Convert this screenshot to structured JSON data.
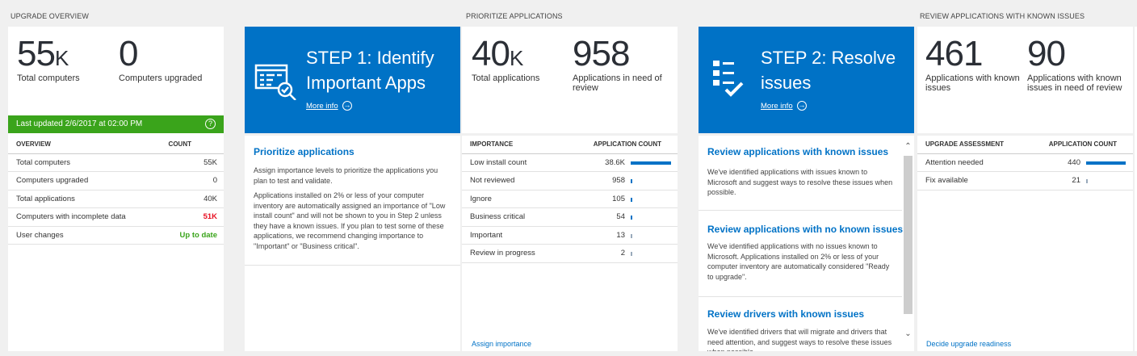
{
  "colors": {
    "accent": "#0072c6",
    "success": "#3aa41b",
    "danger": "#e81123"
  },
  "overview": {
    "section": "UPGRADE OVERVIEW",
    "kpi1": {
      "value": "55",
      "unit": "K",
      "label": "Total computers"
    },
    "kpi2": {
      "value": "0",
      "label": "Computers upgraded"
    },
    "last_updated": "Last updated 2/6/2017 at 02:00 PM",
    "help": "?",
    "table": {
      "headers": [
        "OVERVIEW",
        "COUNT"
      ],
      "rows": [
        [
          "Total computers",
          "55K"
        ],
        [
          "Computers upgraded",
          "0"
        ],
        [
          "Total applications",
          "40K"
        ],
        [
          "Computers with incomplete data",
          "51K"
        ],
        [
          "User changes",
          "Up to date"
        ]
      ]
    }
  },
  "step1": {
    "title": "STEP 1: Identify Important Apps",
    "more": "More info",
    "heading": "Prioritize applications",
    "p1": "Assign importance levels to prioritize the applications you plan to test and validate.",
    "p2": "Applications installed on 2% or less of your computer inventory are automatically assigned an importance of \"Low install count\" and will not be shown to you in Step 2 unless they have a known issues. If you plan to test some of these applications, we recommend changing importance to \"Important\" or \"Business critical\"."
  },
  "prioritize": {
    "section": "PRIORITIZE APPLICATIONS",
    "kpi1": {
      "value": "40",
      "unit": "K",
      "label": "Total applications"
    },
    "kpi2": {
      "value": "958",
      "label": "Applications in need of review"
    },
    "table": {
      "headers": [
        "IMPORTANCE",
        "APPLICATION COUNT"
      ],
      "rows": [
        {
          "label": "Low install count",
          "count": "38.6K",
          "value": 38600
        },
        {
          "label": "Not reviewed",
          "count": "958",
          "value": 958
        },
        {
          "label": "Ignore",
          "count": "105",
          "value": 105
        },
        {
          "label": "Business critical",
          "count": "54",
          "value": 54
        },
        {
          "label": "Important",
          "count": "13",
          "value": 13
        },
        {
          "label": "Review in progress",
          "count": "2",
          "value": 2
        }
      ]
    },
    "link": "Assign importance"
  },
  "step2": {
    "title": "STEP 2: Resolve issues",
    "more": "More info",
    "items": [
      {
        "heading": "Review applications with known issues",
        "text": "We've identified applications with issues known to Microsoft and suggest ways to resolve these issues when possible."
      },
      {
        "heading": "Review applications with no known issues",
        "text": "We've identified applications with no issues known to Microsoft. Applications installed on 2% or less of your computer inventory are automatically considered \"Ready to upgrade\"."
      },
      {
        "heading": "Review drivers with known issues",
        "text": "We've identified drivers that will migrate and drivers that need attention, and suggest ways to resolve these issues when possible."
      }
    ]
  },
  "known": {
    "section": "REVIEW APPLICATIONS WITH KNOWN ISSUES",
    "kpi1": {
      "value": "461",
      "label": "Applications with known issues"
    },
    "kpi2": {
      "value": "90",
      "label": "Applications with known issues in need of review"
    },
    "table": {
      "headers": [
        "UPGRADE ASSESSMENT",
        "APPLICATION COUNT"
      ],
      "rows": [
        {
          "label": "Attention needed",
          "count": "440",
          "value": 440
        },
        {
          "label": "Fix available",
          "count": "21",
          "value": 21
        }
      ]
    },
    "link": "Decide upgrade readiness"
  }
}
